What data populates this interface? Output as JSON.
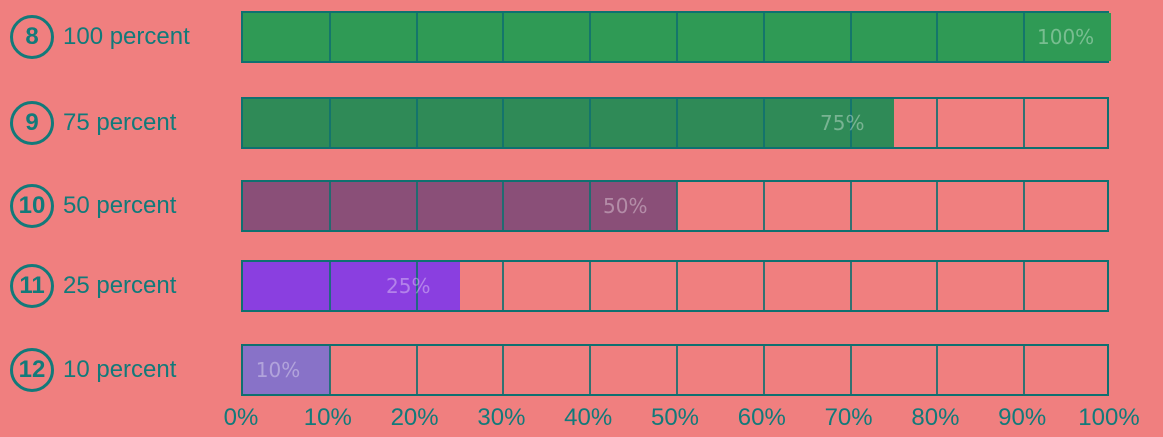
{
  "chart_data": {
    "type": "bar",
    "orientation": "horizontal",
    "categories": [
      "100 percent",
      "75 percent",
      "50 percent",
      "25 percent",
      "10 percent"
    ],
    "badges": [
      "8",
      "9",
      "10",
      "11",
      "12"
    ],
    "values": [
      100,
      75,
      50,
      25,
      10
    ],
    "xlim": [
      0,
      100
    ],
    "tick_labels": [
      "0%",
      "10%",
      "20%",
      "30%",
      "40%",
      "50%",
      "60%",
      "70%",
      "80%",
      "90%",
      "100%"
    ],
    "bar_colors": [
      "#2f9a55",
      "#2f8a57",
      "#8a4f78",
      "#8a3fe0",
      "#8872c8"
    ],
    "grid": true
  },
  "colors": {
    "background": "#f07f7f",
    "text": "#127a7a",
    "track_border": "#0f7070"
  }
}
